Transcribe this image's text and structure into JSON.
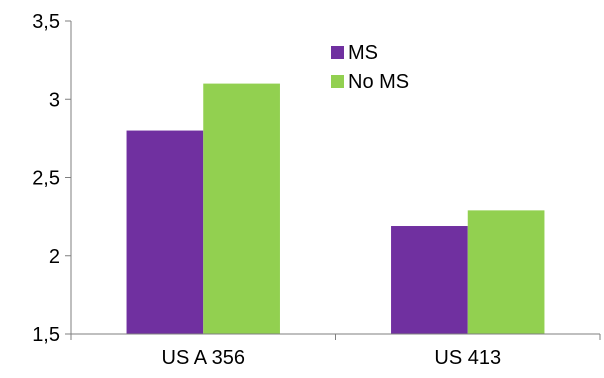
{
  "chart_data": {
    "type": "bar",
    "categories": [
      "US A 356",
      "US 413"
    ],
    "series": [
      {
        "name": "MS",
        "values": [
          2.8,
          2.19
        ],
        "color": "#7030A0"
      },
      {
        "name": "No MS",
        "values": [
          3.1,
          2.29
        ],
        "color": "#92D050"
      }
    ],
    "ylim": [
      1.5,
      3.5
    ],
    "yticks": [
      "1,5",
      "2",
      "2,5",
      "3",
      "3,5"
    ],
    "grid": false,
    "legend_position": "top-center"
  }
}
